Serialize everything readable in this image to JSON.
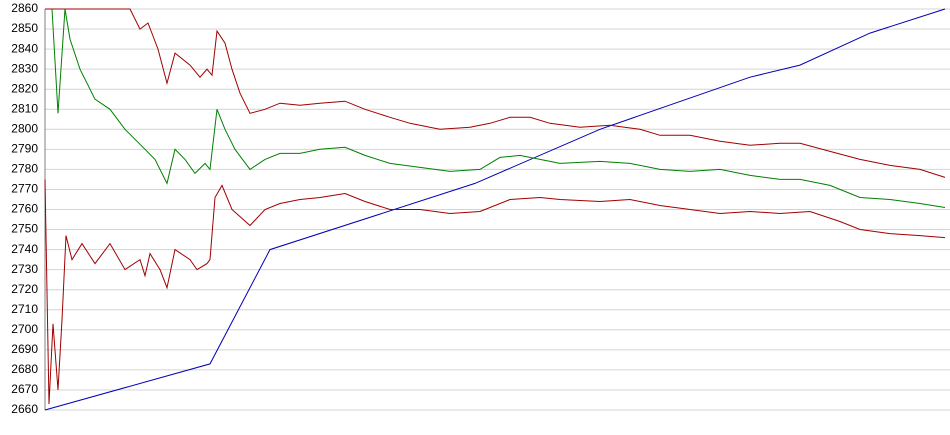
{
  "chart_data": {
    "type": "line",
    "xlim": [
      0,
      903
    ],
    "ylim": [
      2660,
      2860
    ],
    "yticks": [
      2660,
      2670,
      2680,
      2690,
      2700,
      2710,
      2720,
      2730,
      2740,
      2750,
      2760,
      2770,
      2780,
      2790,
      2800,
      2810,
      2820,
      2830,
      2840,
      2850,
      2860
    ],
    "grid": true,
    "series": [
      {
        "color": "#0000b4",
        "x": [
          0,
          165,
          225,
          430,
          555,
          705,
          755,
          825,
          900
        ],
        "values": [
          2660,
          2683,
          2740,
          2773,
          2800,
          2826,
          2832,
          2848,
          2860
        ]
      },
      {
        "color": "#008000",
        "x": [
          7,
          13,
          20,
          25,
          35,
          50,
          65,
          80,
          100,
          110,
          122,
          130,
          140,
          150,
          160,
          165,
          172,
          180,
          190,
          205,
          220,
          235,
          255,
          275,
          300,
          320,
          345,
          375,
          405,
          435,
          455,
          475,
          495,
          515,
          555,
          585,
          615,
          645,
          675,
          705,
          735,
          755,
          785,
          815,
          845,
          875,
          900
        ],
        "values": [
          2860,
          2808,
          2860,
          2845,
          2830,
          2815,
          2810,
          2800,
          2790,
          2785,
          2773,
          2790,
          2785,
          2778,
          2783,
          2780,
          2810,
          2800,
          2790,
          2780,
          2785,
          2788,
          2788,
          2790,
          2791,
          2787,
          2783,
          2781,
          2779,
          2780,
          2786,
          2787,
          2785,
          2783,
          2784,
          2783,
          2780,
          2779,
          2780,
          2777,
          2775,
          2775,
          2772,
          2766,
          2765,
          2763,
          2761
        ]
      },
      {
        "color": "#a00000",
        "x": [
          0,
          77,
          85,
          95,
          103,
          113,
          122,
          130,
          145,
          155,
          162,
          167,
          172,
          180,
          187,
          195,
          205,
          220,
          235,
          255,
          275,
          300,
          320,
          345,
          365,
          395,
          425,
          445,
          465,
          485,
          505,
          535,
          565,
          595,
          615,
          645,
          675,
          705,
          735,
          755,
          785,
          815,
          845,
          875,
          900
        ],
        "values": [
          2860,
          2860,
          2860,
          2850,
          2853,
          2840,
          2823,
          2838,
          2832,
          2826,
          2830,
          2827,
          2849,
          2843,
          2830,
          2818,
          2808,
          2810,
          2813,
          2812,
          2813,
          2814,
          2810,
          2806,
          2803,
          2800,
          2801,
          2803,
          2806,
          2806,
          2803,
          2801,
          2802,
          2800,
          2797,
          2797,
          2794,
          2792,
          2793,
          2793,
          2789,
          2785,
          2782,
          2780,
          2776
        ]
      },
      {
        "color": "#a00000",
        "x": [
          0,
          4,
          8,
          13,
          17,
          21,
          27,
          37,
          50,
          65,
          80,
          95,
          100,
          105,
          115,
          122,
          130,
          145,
          152,
          162,
          165,
          170,
          177,
          187,
          205,
          220,
          235,
          255,
          275,
          300,
          320,
          345,
          375,
          405,
          435,
          465,
          495,
          515,
          555,
          585,
          615,
          645,
          675,
          705,
          735,
          765,
          795,
          815,
          845,
          875,
          900
        ],
        "values": [
          2775,
          2663,
          2703,
          2670,
          2705,
          2747,
          2735,
          2743,
          2733,
          2743,
          2730,
          2735,
          2727,
          2738,
          2730,
          2721,
          2740,
          2735,
          2730,
          2733,
          2735,
          2766,
          2772,
          2760,
          2752,
          2760,
          2763,
          2765,
          2766,
          2768,
          2764,
          2760,
          2760,
          2758,
          2759,
          2765,
          2766,
          2765,
          2764,
          2765,
          2762,
          2760,
          2758,
          2759,
          2758,
          2759,
          2754,
          2750,
          2748,
          2747,
          2746
        ]
      }
    ]
  }
}
